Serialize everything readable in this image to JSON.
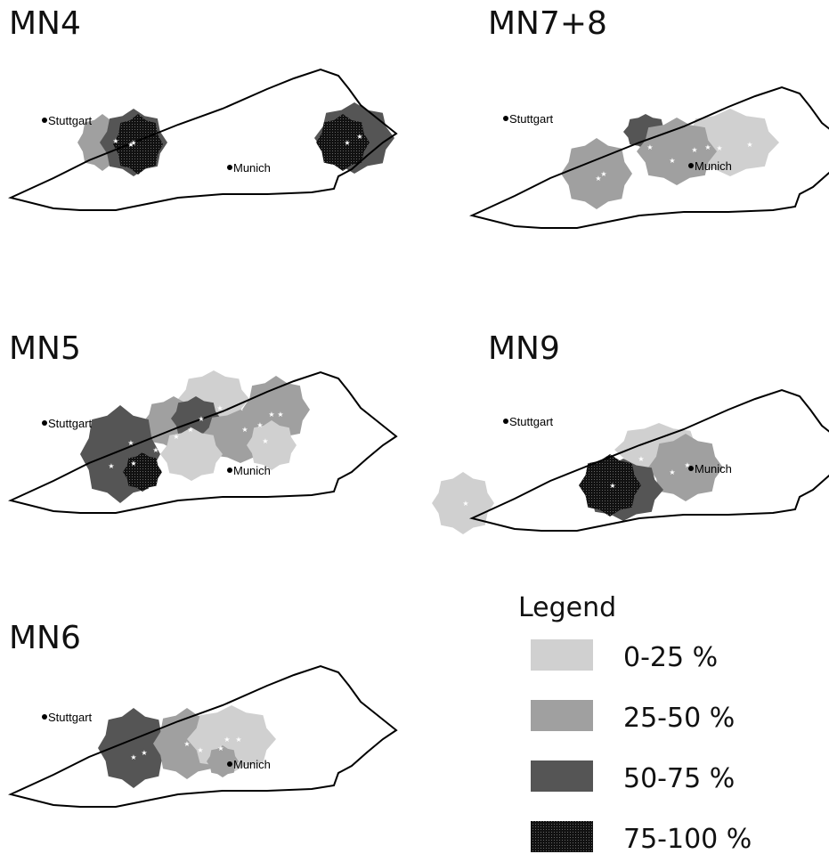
{
  "panels": [
    {
      "title": "MN4",
      "cities": [
        "Stuttgart",
        "Munich"
      ]
    },
    {
      "title": "MN7+8",
      "cities": [
        "Stuttgart",
        "Munich"
      ]
    },
    {
      "title": "MN5",
      "cities": [
        "Stuttgart",
        "Munich"
      ]
    },
    {
      "title": "MN9",
      "cities": [
        "Stuttgart",
        "Munich"
      ]
    },
    {
      "title": "MN6",
      "cities": [
        "Stuttgart",
        "Munich"
      ]
    }
  ],
  "legend": {
    "title": "Legend",
    "items": [
      "0-25 %",
      "25-50 %",
      "50-75 %",
      "75-100 %"
    ]
  }
}
